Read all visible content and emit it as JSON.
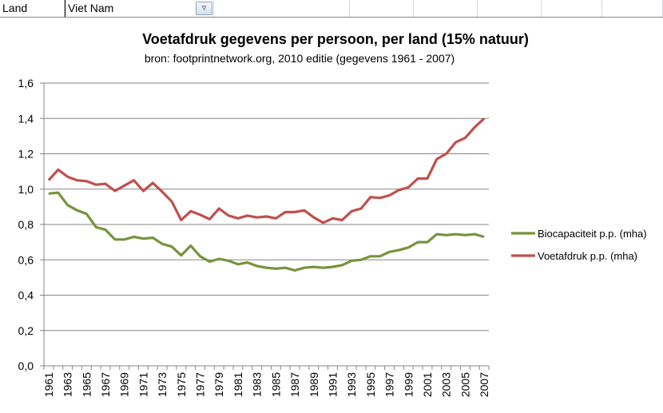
{
  "filter_row": {
    "label": "Land",
    "value": "Viet Nam",
    "filter_icon": "filter-dropdown-icon"
  },
  "chart_data": {
    "type": "line",
    "title": "Voetafdruk gegevens per persoon,  per land (15% natuur)",
    "subtitle": "bron: footprintnetwork.org, 2010 editie (gegevens 1961 - 2007)",
    "xlabel": "",
    "ylabel": "",
    "ylim": [
      0,
      1.6
    ],
    "yticks": [
      "0,0",
      "0,2",
      "0,4",
      "0,6",
      "0,8",
      "1,0",
      "1,2",
      "1,4",
      "1,6"
    ],
    "grid": true,
    "legend": "right",
    "x": [
      1961,
      1962,
      1963,
      1964,
      1965,
      1966,
      1967,
      1968,
      1969,
      1970,
      1971,
      1972,
      1973,
      1974,
      1975,
      1976,
      1977,
      1978,
      1979,
      1980,
      1981,
      1982,
      1983,
      1984,
      1985,
      1986,
      1987,
      1988,
      1989,
      1990,
      1991,
      1992,
      1993,
      1994,
      1995,
      1996,
      1997,
      1998,
      1999,
      2000,
      2001,
      2002,
      2003,
      2004,
      2005,
      2006,
      2007
    ],
    "xtick_labels": [
      "1961",
      "1963",
      "1965",
      "1967",
      "1969",
      "1971",
      "1973",
      "1975",
      "1977",
      "1979",
      "1981",
      "1983",
      "1985",
      "1987",
      "1989",
      "1991",
      "1993",
      "1995",
      "1997",
      "1999",
      "2001",
      "2003",
      "2005",
      "2007"
    ],
    "series": [
      {
        "name": "Biocapaciteit  p.p. (mha)",
        "color": "#77933c",
        "values": [
          0.975,
          0.98,
          0.91,
          0.88,
          0.86,
          0.785,
          0.77,
          0.715,
          0.715,
          0.73,
          0.72,
          0.725,
          0.69,
          0.675,
          0.625,
          0.68,
          0.62,
          0.59,
          0.605,
          0.595,
          0.575,
          0.585,
          0.565,
          0.555,
          0.55,
          0.555,
          0.54,
          0.555,
          0.56,
          0.555,
          0.56,
          0.57,
          0.595,
          0.6,
          0.62,
          0.62,
          0.645,
          0.655,
          0.67,
          0.7,
          0.7,
          0.745,
          0.74,
          0.745,
          0.74,
          0.745,
          0.73
        ]
      },
      {
        "name": "Voetafdruk p.p. (mha)",
        "color": "#c0504d",
        "values": [
          1.05,
          1.11,
          1.07,
          1.05,
          1.045,
          1.025,
          1.03,
          0.99,
          1.02,
          1.05,
          0.99,
          1.035,
          0.985,
          0.93,
          0.825,
          0.875,
          0.855,
          0.83,
          0.89,
          0.85,
          0.835,
          0.85,
          0.84,
          0.845,
          0.835,
          0.87,
          0.87,
          0.88,
          0.84,
          0.81,
          0.835,
          0.825,
          0.875,
          0.89,
          0.955,
          0.95,
          0.965,
          0.995,
          1.01,
          1.06,
          1.06,
          1.17,
          1.2,
          1.265,
          1.29,
          1.35,
          1.4
        ]
      }
    ]
  }
}
